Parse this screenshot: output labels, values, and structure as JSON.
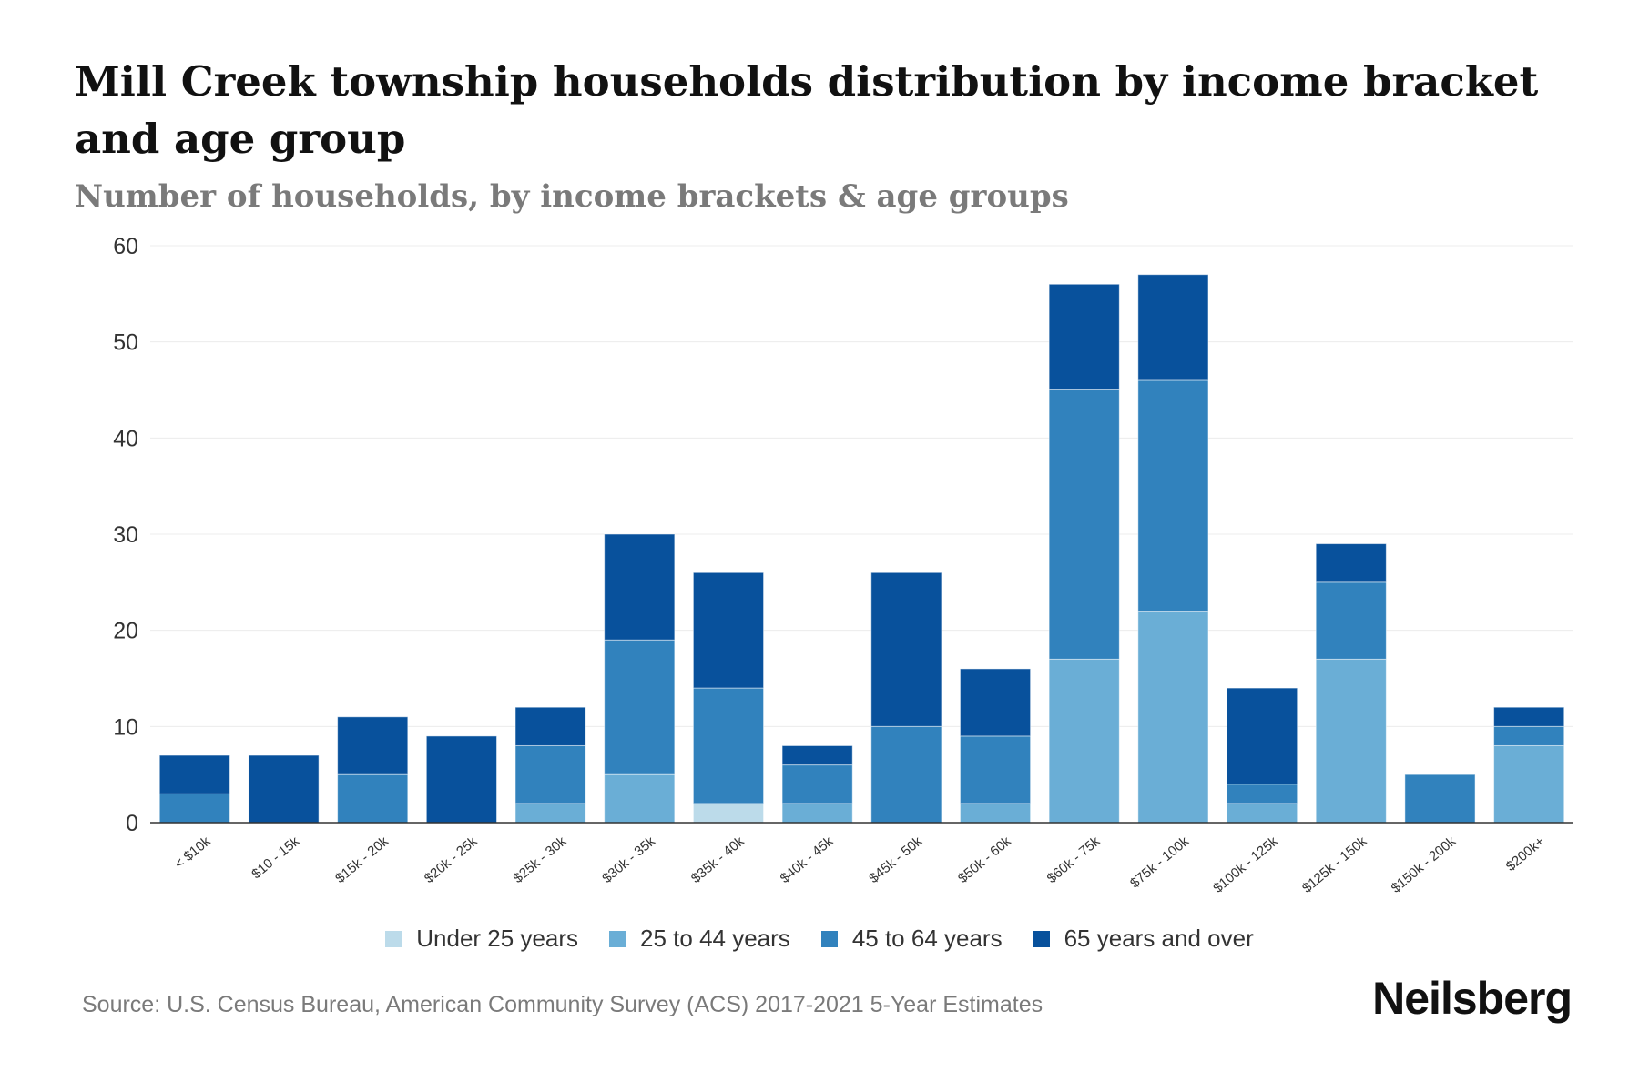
{
  "chart_data": {
    "type": "bar",
    "stacked": true,
    "title": "Mill Creek township households distribution by income bracket and age group",
    "subtitle": "Number of households, by income brackets & age groups",
    "xlabel": "",
    "ylabel": "",
    "ylim": [
      0,
      60
    ],
    "yticks": [
      0,
      10,
      20,
      30,
      40,
      50,
      60
    ],
    "grid": true,
    "legend_position": "bottom-center",
    "categories": [
      "< $10k",
      "$10 - 15k",
      "$15k - 20k",
      "$20k - 25k",
      "$25k - 30k",
      "$30k - 35k",
      "$35k - 40k",
      "$40k - 45k",
      "$45k - 50k",
      "$50k - 60k",
      "$60k - 75k",
      "$75k - 100k",
      "$100k - 125k",
      "$125k - 150k",
      "$150k - 200k",
      "$200k+"
    ],
    "series": [
      {
        "name": "Under 25 years",
        "color": "#bcdbea",
        "values": [
          0,
          0,
          0,
          0,
          0,
          0,
          2,
          0,
          0,
          0,
          0,
          0,
          0,
          0,
          0,
          0
        ]
      },
      {
        "name": "25 to 44 years",
        "color": "#6aaed6",
        "values": [
          0,
          0,
          0,
          0,
          2,
          5,
          0,
          2,
          0,
          2,
          17,
          22,
          2,
          17,
          0,
          8
        ]
      },
      {
        "name": "45 to 64 years",
        "color": "#3182bd",
        "values": [
          3,
          0,
          5,
          0,
          6,
          14,
          12,
          4,
          10,
          7,
          28,
          24,
          2,
          8,
          5,
          2
        ]
      },
      {
        "name": "65 years and over",
        "color": "#08519c",
        "values": [
          4,
          7,
          6,
          9,
          4,
          11,
          12,
          2,
          16,
          7,
          11,
          11,
          10,
          4,
          0,
          2
        ]
      }
    ]
  },
  "footer": {
    "source": "Source: U.S. Census Bureau, American Community Survey (ACS) 2017-2021 5-Year Estimates",
    "brand": "Neilsberg"
  }
}
